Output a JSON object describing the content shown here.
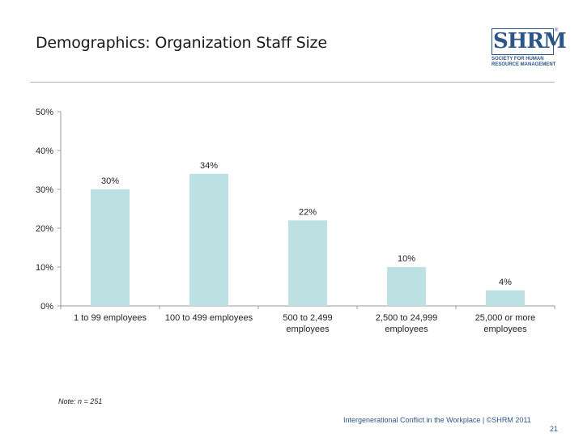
{
  "slide": {
    "title": "Demographics: Organization Staff Size",
    "note": "Note: n = 251",
    "footer": "Intergenerational Conflict in the Workplace | ©SHRM 2011",
    "page_number": "21"
  },
  "logo": {
    "mark": "SHRM",
    "registered": "®",
    "line1": "SOCIETY FOR HUMAN",
    "line2": "RESOURCE MANAGEMENT"
  },
  "colors": {
    "bar": "#bde0e3",
    "axis": "#9a9a9a",
    "brand": "#2c5687"
  },
  "chart_data": {
    "type": "bar",
    "title": "Demographics: Organization Staff Size",
    "categories": [
      [
        "1 to 99 employees"
      ],
      [
        "100 to 499 employees"
      ],
      [
        "500 to 2,499",
        "employees"
      ],
      [
        "2,500 to 24,999",
        "employees"
      ],
      [
        "25,000 or more",
        "employees"
      ]
    ],
    "values": [
      30,
      34,
      22,
      10,
      4
    ],
    "data_labels": [
      "30%",
      "34%",
      "22%",
      "10%",
      "4%"
    ],
    "ylim": [
      0,
      50
    ],
    "yticks": [
      0,
      10,
      20,
      30,
      40,
      50
    ],
    "ytick_labels": [
      "0%",
      "10%",
      "20%",
      "30%",
      "40%",
      "50%"
    ],
    "xlabel": "",
    "ylabel": "",
    "grid": false,
    "legend": "none"
  }
}
